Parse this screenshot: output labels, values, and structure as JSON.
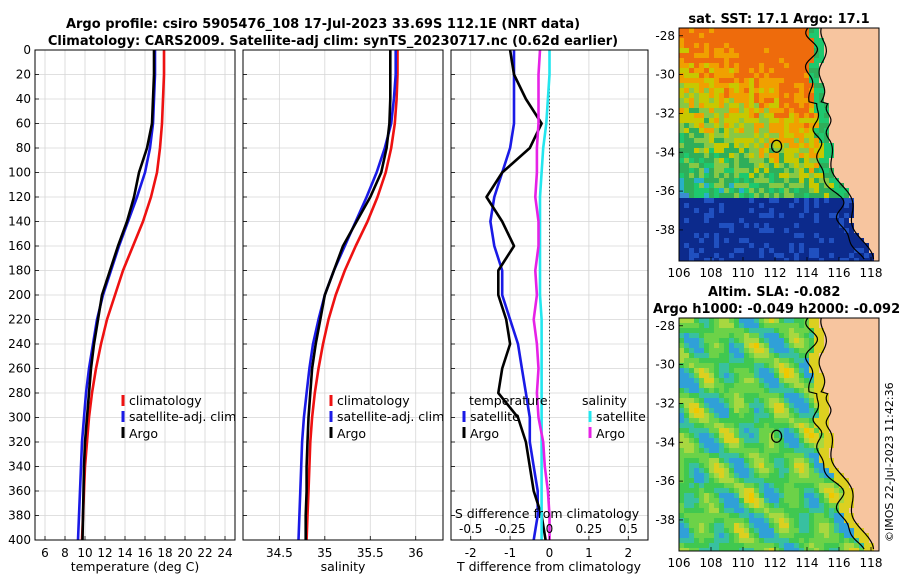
{
  "header": {
    "title_line1": "Argo profile: csiro 5905476_108 17-Jul-2023 33.69S 112.1E (NRT data)",
    "title_line2": "Climatology: CARS2009. Satellite-adj clim: synTS_20230717.nc (0.62d earlier)"
  },
  "colors": {
    "climatology": "#ee1111",
    "satellite": "#1a1ae6",
    "argo": "#000000",
    "salinity_satellite": "#22e6ee",
    "salinity_argo": "#e622e6",
    "land": "#f7c59f"
  },
  "chart_data": [
    {
      "type": "line",
      "name": "temperature-profile",
      "xlabel": "temperature (deg C)",
      "ylabel": "",
      "xlim": [
        5,
        25
      ],
      "ylim": [
        400,
        0
      ],
      "grid": true,
      "xticks": [
        6,
        8,
        10,
        12,
        14,
        16,
        18,
        20,
        22,
        24
      ],
      "yticks": [
        0,
        20,
        40,
        60,
        80,
        100,
        120,
        140,
        160,
        180,
        200,
        220,
        240,
        260,
        280,
        300,
        320,
        340,
        360,
        380,
        400
      ],
      "legend": [
        "climatology",
        "satellite-adj. clim",
        "Argo"
      ],
      "series": [
        {
          "name": "climatology",
          "x": [
            17.9,
            17.9,
            17.8,
            17.7,
            17.5,
            17.2,
            16.6,
            15.8,
            14.8,
            13.8,
            13.0,
            12.2,
            11.6,
            11.1,
            10.7,
            10.4,
            10.2,
            10.0,
            9.9,
            9.8,
            9.7
          ],
          "y": [
            0,
            20,
            40,
            60,
            80,
            100,
            120,
            140,
            160,
            180,
            200,
            220,
            240,
            260,
            280,
            300,
            320,
            340,
            360,
            380,
            400
          ]
        },
        {
          "name": "satellite-adj. clim",
          "x": [
            17.0,
            17.0,
            16.9,
            16.8,
            16.5,
            16.0,
            15.2,
            14.3,
            13.4,
            12.6,
            11.8,
            11.2,
            10.8,
            10.4,
            10.1,
            9.9,
            9.7,
            9.6,
            9.5,
            9.4,
            9.3
          ],
          "y": [
            0,
            20,
            40,
            60,
            80,
            100,
            120,
            140,
            160,
            180,
            200,
            220,
            240,
            260,
            280,
            300,
            320,
            340,
            360,
            380,
            400
          ]
        },
        {
          "name": "Argo",
          "x": [
            16.9,
            16.9,
            16.8,
            16.7,
            16.2,
            15.4,
            14.9,
            14.2,
            13.3,
            12.5,
            11.7,
            11.3,
            10.9,
            10.6,
            10.4,
            10.2,
            10.0,
            9.9,
            9.85,
            9.8,
            9.75
          ],
          "y": [
            0,
            20,
            40,
            60,
            80,
            100,
            120,
            140,
            160,
            180,
            200,
            220,
            240,
            260,
            280,
            300,
            320,
            340,
            360,
            380,
            400
          ]
        }
      ]
    },
    {
      "type": "line",
      "name": "salinity-profile",
      "xlabel": "salinity",
      "xlim": [
        34.1,
        36.3
      ],
      "ylim": [
        400,
        0
      ],
      "grid": true,
      "xticks": [
        34.5,
        35,
        35.5,
        36
      ],
      "legend": [
        "climatology",
        "satellite-adj. clim",
        "Argo"
      ],
      "series": [
        {
          "name": "climatology",
          "x": [
            35.8,
            35.8,
            35.79,
            35.77,
            35.73,
            35.67,
            35.58,
            35.47,
            35.34,
            35.22,
            35.12,
            35.04,
            34.98,
            34.93,
            34.89,
            34.86,
            34.84,
            34.83,
            34.82,
            34.81,
            34.8
          ],
          "y": [
            0,
            20,
            40,
            60,
            80,
            100,
            120,
            140,
            160,
            180,
            200,
            220,
            240,
            260,
            280,
            300,
            320,
            340,
            360,
            380,
            400
          ]
        },
        {
          "name": "satellite-adj. clim",
          "x": [
            35.78,
            35.78,
            35.76,
            35.73,
            35.66,
            35.57,
            35.46,
            35.34,
            35.22,
            35.1,
            35.0,
            34.93,
            34.87,
            34.83,
            34.8,
            34.77,
            34.75,
            34.74,
            34.73,
            34.72,
            34.71
          ],
          "y": [
            0,
            20,
            40,
            60,
            80,
            100,
            120,
            140,
            160,
            180,
            200,
            220,
            240,
            260,
            280,
            300,
            320,
            340,
            360,
            380,
            400
          ]
        },
        {
          "name": "Argo",
          "x": [
            35.72,
            35.72,
            35.72,
            35.71,
            35.68,
            35.62,
            35.5,
            35.35,
            35.2,
            35.1,
            35.0,
            34.95,
            34.9,
            34.86,
            34.84,
            34.82,
            34.81,
            34.8,
            34.8,
            34.79,
            34.79
          ],
          "y": [
            0,
            20,
            40,
            60,
            80,
            100,
            120,
            140,
            160,
            180,
            200,
            220,
            240,
            260,
            280,
            300,
            320,
            340,
            360,
            380,
            400
          ]
        }
      ]
    },
    {
      "type": "line",
      "name": "difference-from-climatology",
      "xlabel": "T difference from climatology",
      "xlabel_top": "S difference from climatology",
      "xlim": [
        -2.5,
        2.5
      ],
      "ylim": [
        400,
        0
      ],
      "grid": true,
      "xticks": [
        -2,
        -1,
        0,
        1,
        2
      ],
      "xticks_top": [
        -0.5,
        -0.25,
        0,
        0.25,
        0.5
      ],
      "legend_titles": [
        "temperature",
        "salinity"
      ],
      "legend": [
        "satellite",
        "Argo",
        "satellite",
        "Argo"
      ],
      "series": [
        {
          "name": "temperature satellite",
          "x": [
            -0.9,
            -0.9,
            -0.9,
            -0.9,
            -1.0,
            -1.2,
            -1.4,
            -1.5,
            -1.4,
            -1.2,
            -1.2,
            -1.0,
            -0.8,
            -0.7,
            -0.6,
            -0.5,
            -0.5,
            -0.4,
            -0.3,
            -0.3,
            -0.4
          ],
          "y": [
            0,
            20,
            40,
            60,
            80,
            100,
            120,
            140,
            160,
            180,
            200,
            220,
            240,
            260,
            280,
            300,
            320,
            340,
            360,
            380,
            400
          ]
        },
        {
          "name": "temperature Argo",
          "x": [
            -1.0,
            -0.9,
            -0.6,
            -0.2,
            -0.5,
            -1.2,
            -1.6,
            -1.2,
            -0.9,
            -1.3,
            -1.3,
            -1.1,
            -1.0,
            -1.2,
            -1.3,
            -0.8,
            -0.6,
            -0.5,
            -0.4,
            -0.2,
            -0.1
          ],
          "y": [
            0,
            20,
            40,
            60,
            80,
            100,
            120,
            140,
            160,
            180,
            200,
            220,
            240,
            260,
            280,
            300,
            320,
            340,
            360,
            380,
            400
          ]
        },
        {
          "name": "salinity satellite",
          "x": [
            0.0,
            0.0,
            -0.01,
            -0.02,
            -0.04,
            -0.05,
            -0.06,
            -0.06,
            -0.06,
            -0.06,
            -0.06,
            -0.05,
            -0.05,
            -0.05,
            -0.05,
            -0.05,
            -0.05,
            -0.05,
            -0.05,
            -0.05,
            -0.05
          ],
          "y": [
            0,
            20,
            40,
            60,
            80,
            100,
            120,
            140,
            160,
            180,
            200,
            220,
            240,
            260,
            280,
            300,
            320,
            340,
            360,
            380,
            400
          ]
        },
        {
          "name": "salinity Argo",
          "x": [
            -0.06,
            -0.07,
            -0.07,
            -0.07,
            -0.08,
            -0.08,
            -0.09,
            -0.07,
            -0.07,
            -0.09,
            -0.08,
            -0.1,
            -0.08,
            -0.07,
            -0.08,
            -0.07,
            -0.04,
            -0.03,
            -0.01,
            0.0,
            0.0
          ],
          "y": [
            0,
            20,
            40,
            60,
            80,
            100,
            120,
            140,
            160,
            180,
            200,
            220,
            240,
            260,
            280,
            300,
            320,
            340,
            360,
            380,
            400
          ]
        }
      ]
    },
    {
      "type": "heatmap",
      "name": "sst-map",
      "title": "sat. SST: 17.1  Argo: 17.1",
      "xlim": [
        106,
        118.5
      ],
      "ylim": [
        -39.6,
        -27.6
      ],
      "xticks": [
        106,
        108,
        110,
        112,
        114,
        116,
        118
      ],
      "yticks": [
        -28,
        -30,
        -32,
        -34,
        -36,
        -38
      ],
      "argo_position": [
        112.1,
        -33.69
      ]
    },
    {
      "type": "heatmap",
      "name": "sla-map",
      "title_line1": "Altim. SLA: -0.082",
      "title_line2": "Argo h1000: -0.049 h2000: -0.092",
      "xlim": [
        106,
        118.5
      ],
      "ylim": [
        -39.6,
        -27.6
      ],
      "xticks": [
        106,
        108,
        110,
        112,
        114,
        116,
        118
      ],
      "yticks": [
        -28,
        -30,
        -32,
        -34,
        -36,
        -38
      ],
      "argo_position": [
        112.1,
        -33.69
      ]
    }
  ],
  "footer": {
    "credit": "©IMOS 22-Jul-2023 11:42:36"
  }
}
